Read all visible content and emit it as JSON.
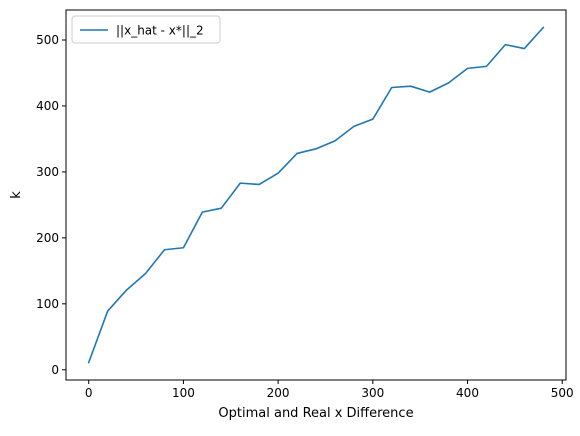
{
  "chart_data": {
    "type": "line",
    "title": "",
    "xlabel": "Optimal and Real x Difference",
    "ylabel": "k",
    "xlim": [
      -24,
      504
    ],
    "ylim": [
      -15.5,
      545.5
    ],
    "xticks": [
      0,
      100,
      200,
      300,
      400,
      500
    ],
    "yticks": [
      0,
      100,
      200,
      300,
      400,
      500
    ],
    "grid": false,
    "legend_position": "upper-left",
    "series": [
      {
        "name": "||x_hat - x*||_2",
        "color": "#1f77b4",
        "x": [
          0,
          20,
          40,
          60,
          80,
          100,
          120,
          140,
          160,
          180,
          200,
          220,
          240,
          260,
          280,
          300,
          320,
          340,
          360,
          380,
          400,
          420,
          440,
          460,
          480
        ],
        "y": [
          11,
          89,
          121,
          146,
          182,
          185,
          239,
          245,
          283,
          281,
          298,
          328,
          335,
          347,
          369,
          380,
          428,
          430,
          421,
          435,
          457,
          460,
          493,
          487,
          519
        ]
      }
    ]
  }
}
